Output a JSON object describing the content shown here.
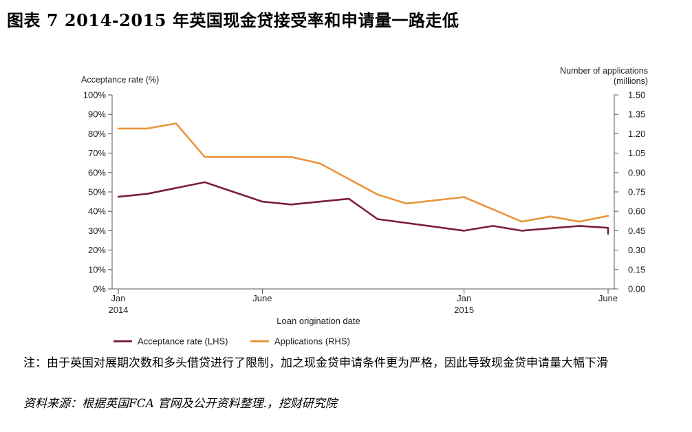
{
  "figure_title": "图表 7   2014-2015 年英国现金贷接受率和申请量一路走低",
  "note": "注：由于英国对展期次数和多头借贷进行了限制，加之现金贷申请条件更为严格，因此导致现金贷申请量大幅下滑",
  "source": "资料来源：根据英国FCA 官网及公开资料整理.，挖财研究院",
  "colors": {
    "acceptance": "#7b1f35",
    "applications": "#e8963a",
    "axis": "#555555"
  },
  "chart_data": {
    "type": "line",
    "left_axis_label": "Acceptance rate (%)",
    "right_axis_label_line1": "Number of applications",
    "right_axis_label_line2": "(millions)",
    "xlabel": "Loan origination date",
    "left_ylim": [
      0,
      100
    ],
    "right_ylim": [
      0,
      1.5
    ],
    "left_ticks": [
      "0%",
      "10%",
      "20%",
      "30%",
      "40%",
      "50%",
      "60%",
      "70%",
      "80%",
      "90%",
      "100%"
    ],
    "right_ticks": [
      "0.00",
      "0.15",
      "0.30",
      "0.45",
      "0.60",
      "0.75",
      "0.90",
      "1.05",
      "1.20",
      "1.35",
      "1.50"
    ],
    "x_months": [
      "2014-01",
      "2014-02",
      "2014-03",
      "2014-04",
      "2014-05",
      "2014-06",
      "2014-07",
      "2014-08",
      "2014-09",
      "2014-10",
      "2014-11",
      "2014-12",
      "2015-01",
      "2015-02",
      "2015-03",
      "2015-04",
      "2015-05",
      "2015-06"
    ],
    "x_tick_labels": [
      {
        "month": "2014-01",
        "line1": "Jan",
        "line2": "2014"
      },
      {
        "month": "2014-06",
        "line1": "June",
        "line2": ""
      },
      {
        "month": "2015-01",
        "line1": "Jan",
        "line2": "2015"
      },
      {
        "month": "2015-06",
        "line1": "June",
        "line2": ""
      }
    ],
    "series": [
      {
        "name": "Acceptance rate (LHS)",
        "axis": "left",
        "points": [
          [
            "2014-01",
            47.5
          ],
          [
            "2014-02",
            49
          ],
          [
            "2014-04",
            55
          ],
          [
            "2014-06",
            45
          ],
          [
            "2014-07",
            43.5
          ],
          [
            "2014-09",
            46.5
          ],
          [
            "2014-10",
            36
          ],
          [
            "2015-01",
            30
          ],
          [
            "2015-02",
            32.5
          ],
          [
            "2015-03",
            30
          ],
          [
            "2015-05",
            32.5
          ],
          [
            "2015-06",
            31.5
          ],
          [
            "2015-06",
            28.5
          ]
        ]
      },
      {
        "name": "Applications (RHS)",
        "axis": "right",
        "points": [
          [
            "2014-01",
            1.24
          ],
          [
            "2014-02",
            1.24
          ],
          [
            "2014-03",
            1.28
          ],
          [
            "2014-04",
            1.02
          ],
          [
            "2014-07",
            1.02
          ],
          [
            "2014-08",
            0.97
          ],
          [
            "2014-10",
            0.73
          ],
          [
            "2014-11",
            0.66
          ],
          [
            "2015-01",
            0.71
          ],
          [
            "2015-03",
            0.52
          ],
          [
            "2015-04",
            0.56
          ],
          [
            "2015-05",
            0.52
          ],
          [
            "2015-06",
            0.565
          ]
        ]
      }
    ]
  }
}
